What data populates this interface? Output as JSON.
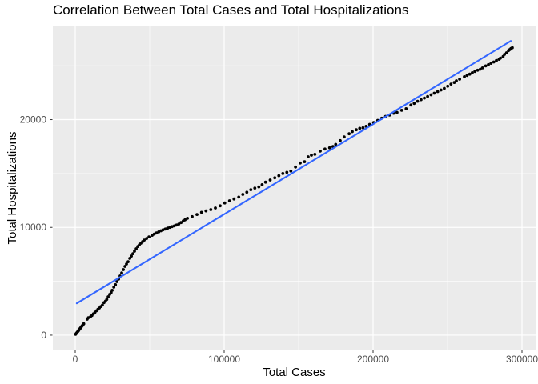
{
  "chart_data": {
    "type": "scatter",
    "title": "Correlation Between Total Cases and Total Hospitalizations",
    "xlabel": "Total Cases",
    "ylabel": "Total Hospitalizations",
    "grid": "on",
    "legend": "none",
    "xlim": [
      -15054,
      309140
    ],
    "ylim": [
      -1340,
      28650
    ],
    "x_ticks": {
      "values": [
        0,
        100000,
        200000,
        300000
      ],
      "labels": [
        "0",
        "100000",
        "200000",
        "300000"
      ]
    },
    "y_ticks": {
      "values": [
        0,
        10000,
        20000
      ],
      "labels": [
        "0",
        "10000",
        "20000"
      ]
    },
    "x_minor": [
      50000,
      150000,
      250000
    ],
    "y_minor": [
      5000,
      15000,
      25000
    ],
    "colors": {
      "point": "#000000",
      "trend": "#3366FF",
      "panel_bg": "#EBEBEB",
      "grid": "#FFFFFF",
      "tick_text": "#4D4D4D",
      "tick_mark": "#333333",
      "title_text": "#000000"
    },
    "trend_line": {
      "type": "linear",
      "start": [
        1000,
        2950
      ],
      "end": [
        292500,
        27300
      ]
    },
    "series": [
      {
        "name": "hospitalizations-vs-cases",
        "points": [
          [
            200,
            75
          ],
          [
            700,
            160
          ],
          [
            1200,
            250
          ],
          [
            1700,
            340
          ],
          [
            2200,
            430
          ],
          [
            2700,
            520
          ],
          [
            3200,
            610
          ],
          [
            3700,
            700
          ],
          [
            4200,
            790
          ],
          [
            4700,
            880
          ],
          [
            5200,
            970
          ],
          [
            5700,
            1060
          ],
          [
            8000,
            1480
          ],
          [
            8800,
            1620
          ],
          [
            10200,
            1700
          ],
          [
            11200,
            1820
          ],
          [
            12200,
            1980
          ],
          [
            13200,
            2120
          ],
          [
            14200,
            2260
          ],
          [
            15200,
            2400
          ],
          [
            16200,
            2520
          ],
          [
            17200,
            2660
          ],
          [
            18200,
            2790
          ],
          [
            19300,
            3020
          ],
          [
            20300,
            3160
          ],
          [
            21200,
            3320
          ],
          [
            22100,
            3560
          ],
          [
            23100,
            3780
          ],
          [
            24100,
            3960
          ],
          [
            24800,
            4160
          ],
          [
            25900,
            4450
          ],
          [
            27000,
            4680
          ],
          [
            28000,
            4970
          ],
          [
            29100,
            5200
          ],
          [
            30100,
            5490
          ],
          [
            31200,
            5780
          ],
          [
            32300,
            6080
          ],
          [
            33400,
            6380
          ],
          [
            34400,
            6600
          ],
          [
            35500,
            6820
          ],
          [
            36600,
            7120
          ],
          [
            37700,
            7340
          ],
          [
            38700,
            7560
          ],
          [
            39800,
            7790
          ],
          [
            40900,
            8010
          ],
          [
            42000,
            8230
          ],
          [
            43000,
            8380
          ],
          [
            44100,
            8530
          ],
          [
            45200,
            8680
          ],
          [
            46300,
            8820
          ],
          [
            47900,
            8970
          ],
          [
            49500,
            9120
          ],
          [
            51600,
            9270
          ],
          [
            53000,
            9380
          ],
          [
            54500,
            9480
          ],
          [
            56000,
            9580
          ],
          [
            57500,
            9680
          ],
          [
            59000,
            9770
          ],
          [
            60500,
            9850
          ],
          [
            62000,
            9930
          ],
          [
            63500,
            10000
          ],
          [
            65000,
            10070
          ],
          [
            66500,
            10140
          ],
          [
            68000,
            10220
          ],
          [
            69500,
            10310
          ],
          [
            71000,
            10450
          ],
          [
            72500,
            10600
          ],
          [
            73700,
            10700
          ],
          [
            75300,
            10840
          ],
          [
            78500,
            11000
          ],
          [
            81700,
            11200
          ],
          [
            84800,
            11400
          ],
          [
            87800,
            11530
          ],
          [
            91000,
            11650
          ],
          [
            94100,
            11800
          ],
          [
            97300,
            12000
          ],
          [
            100400,
            12270
          ],
          [
            103600,
            12470
          ],
          [
            106600,
            12640
          ],
          [
            109800,
            12810
          ],
          [
            112500,
            13060
          ],
          [
            115200,
            13260
          ],
          [
            117900,
            13500
          ],
          [
            120600,
            13650
          ],
          [
            123300,
            13760
          ],
          [
            125500,
            13960
          ],
          [
            127800,
            14200
          ],
          [
            130900,
            14400
          ],
          [
            134000,
            14600
          ],
          [
            136700,
            14800
          ],
          [
            139400,
            15000
          ],
          [
            142100,
            15110
          ],
          [
            144800,
            15230
          ],
          [
            147900,
            15600
          ],
          [
            151100,
            15970
          ],
          [
            154000,
            16100
          ],
          [
            156400,
            16550
          ],
          [
            158600,
            16700
          ],
          [
            160900,
            16780
          ],
          [
            164500,
            17080
          ],
          [
            167700,
            17270
          ],
          [
            170800,
            17380
          ],
          [
            173000,
            17500
          ],
          [
            174900,
            17700
          ],
          [
            177900,
            18050
          ],
          [
            180600,
            18390
          ],
          [
            183900,
            18690
          ],
          [
            186000,
            18890
          ],
          [
            188700,
            19060
          ],
          [
            191000,
            19190
          ],
          [
            193200,
            19240
          ],
          [
            195300,
            19380
          ],
          [
            197700,
            19560
          ],
          [
            200400,
            19730
          ],
          [
            203100,
            19930
          ],
          [
            205800,
            20130
          ],
          [
            208400,
            20300
          ],
          [
            211100,
            20420
          ],
          [
            213800,
            20590
          ],
          [
            216100,
            20670
          ],
          [
            219200,
            20860
          ],
          [
            222200,
            21010
          ],
          [
            225400,
            21350
          ],
          [
            227600,
            21500
          ],
          [
            229900,
            21700
          ],
          [
            232200,
            21850
          ],
          [
            234400,
            22000
          ],
          [
            236600,
            22150
          ],
          [
            238900,
            22300
          ],
          [
            241100,
            22450
          ],
          [
            243400,
            22600
          ],
          [
            245600,
            22750
          ],
          [
            247800,
            22900
          ],
          [
            250100,
            23100
          ],
          [
            252300,
            23300
          ],
          [
            254500,
            23450
          ],
          [
            255900,
            23600
          ],
          [
            258100,
            23750
          ],
          [
            261300,
            23980
          ],
          [
            263100,
            24100
          ],
          [
            264900,
            24220
          ],
          [
            266600,
            24350
          ],
          [
            268400,
            24470
          ],
          [
            270200,
            24580
          ],
          [
            272000,
            24680
          ],
          [
            273500,
            24800
          ],
          [
            275600,
            24980
          ],
          [
            277400,
            25100
          ],
          [
            279200,
            25230
          ],
          [
            281000,
            25350
          ],
          [
            282800,
            25480
          ],
          [
            284600,
            25600
          ],
          [
            285500,
            25700
          ],
          [
            287300,
            25850
          ],
          [
            288200,
            26050
          ],
          [
            289600,
            26200
          ],
          [
            290900,
            26400
          ],
          [
            291800,
            26500
          ],
          [
            292600,
            26600
          ],
          [
            293500,
            26670
          ]
        ]
      }
    ]
  }
}
